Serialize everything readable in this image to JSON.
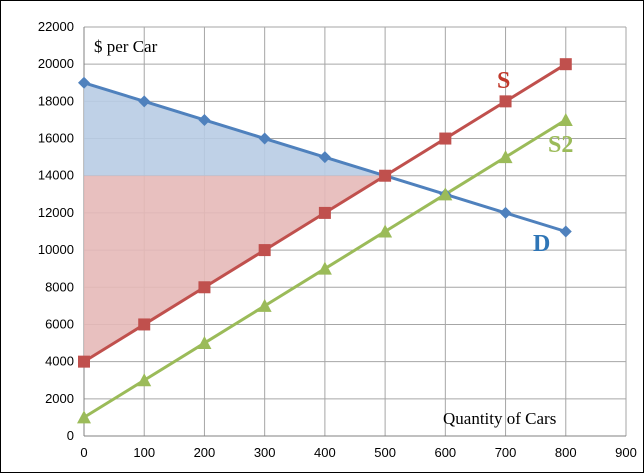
{
  "chart_data": {
    "type": "line",
    "ylabel": "$ per Car",
    "xlabel": "Quantity  of Cars",
    "xlim": [
      0,
      900
    ],
    "ylim": [
      0,
      22000
    ],
    "x_ticks": [
      0,
      100,
      200,
      300,
      400,
      500,
      600,
      700,
      800,
      900
    ],
    "y_ticks": [
      0,
      2000,
      4000,
      6000,
      8000,
      10000,
      12000,
      14000,
      16000,
      18000,
      20000,
      22000
    ],
    "grid": true,
    "series": [
      {
        "name": "D",
        "color": "#4f81bd",
        "marker": "diamond",
        "x": [
          0,
          100,
          200,
          300,
          400,
          500,
          600,
          700,
          800
        ],
        "y": [
          19000,
          18000,
          17000,
          16000,
          15000,
          14000,
          13000,
          12000,
          11000
        ]
      },
      {
        "name": "S",
        "color": "#c0504d",
        "marker": "square",
        "x": [
          0,
          100,
          200,
          300,
          400,
          500,
          600,
          700,
          800
        ],
        "y": [
          4000,
          6000,
          8000,
          10000,
          12000,
          14000,
          16000,
          18000,
          20000
        ]
      },
      {
        "name": "S2",
        "color": "#9bbb59",
        "marker": "triangle",
        "x": [
          0,
          100,
          200,
          300,
          400,
          500,
          600,
          700,
          800
        ],
        "y": [
          1000,
          3000,
          5000,
          7000,
          9000,
          11000,
          13000,
          15000,
          17000
        ]
      }
    ],
    "shaded_regions": [
      {
        "name": "consumer-surplus",
        "color": "#b8cce4",
        "between": [
          "D",
          14000
        ],
        "x_range": [
          0,
          500
        ]
      },
      {
        "name": "producer-surplus",
        "color": "#e6b9b8",
        "between": [
          14000,
          "S"
        ],
        "x_range": [
          0,
          500
        ]
      }
    ],
    "series_label_colors": {
      "D": "#2e75b6",
      "S": "#c0392b",
      "S2": "#9bbb59"
    }
  }
}
